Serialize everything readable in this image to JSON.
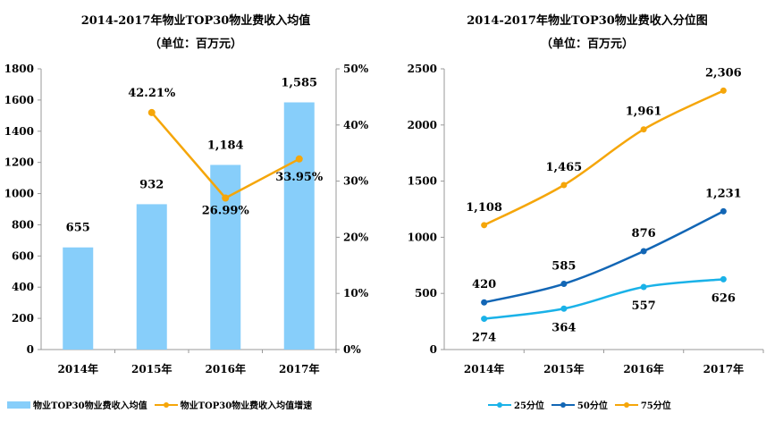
{
  "chart_data": [
    {
      "type": "bar+line",
      "title": "2014-2017年物业TOP30物业费收入均值",
      "subtitle": "（单位：百万元）",
      "categories": [
        "2014年",
        "2015年",
        "2016年",
        "2017年"
      ],
      "bar_series": {
        "name": "物业TOP30物业费收入均值",
        "values": [
          655,
          932,
          1184,
          1585
        ],
        "labels": [
          "655",
          "932",
          "1,184",
          "1,585"
        ],
        "color": "#87CEFA"
      },
      "line_series": {
        "name": "物业TOP30物业费收入均值增速",
        "values": [
          null,
          42.21,
          26.99,
          33.95
        ],
        "labels": [
          "",
          "42.21%",
          "26.99%",
          "33.95%"
        ],
        "color": "#F5A60A"
      },
      "ylim_left": [
        0,
        1800
      ],
      "yticks_left": [
        "0",
        "200",
        "400",
        "600",
        "800",
        "1000",
        "1200",
        "1400",
        "1600",
        "1800"
      ],
      "ylim_right": [
        0,
        50
      ],
      "yticks_right": [
        "0%",
        "10%",
        "20%",
        "30%",
        "40%",
        "50%"
      ],
      "legend": "bottom"
    },
    {
      "type": "line",
      "title": "2014-2017年物业TOP30物业费收入分位图",
      "subtitle": "（单位：百万元）",
      "categories": [
        "2014年",
        "2015年",
        "2016年",
        "2017年"
      ],
      "series": [
        {
          "name": "25分位",
          "values": [
            274,
            364,
            557,
            626
          ],
          "labels": [
            "274",
            "364",
            "557",
            "626"
          ],
          "color": "#1AB2E8"
        },
        {
          "name": "50分位",
          "values": [
            420,
            585,
            876,
            1231
          ],
          "labels": [
            "420",
            "585",
            "876",
            "1,231"
          ],
          "color": "#1266B5"
        },
        {
          "name": "75分位",
          "values": [
            1108,
            1465,
            1961,
            2306
          ],
          "labels": [
            "1,108",
            "1,465",
            "1,961",
            "2,306"
          ],
          "color": "#F5A60A"
        }
      ],
      "ylim": [
        0,
        2500
      ],
      "yticks": [
        "0",
        "500",
        "1000",
        "1500",
        "2000",
        "2500"
      ],
      "legend": "bottom"
    }
  ]
}
